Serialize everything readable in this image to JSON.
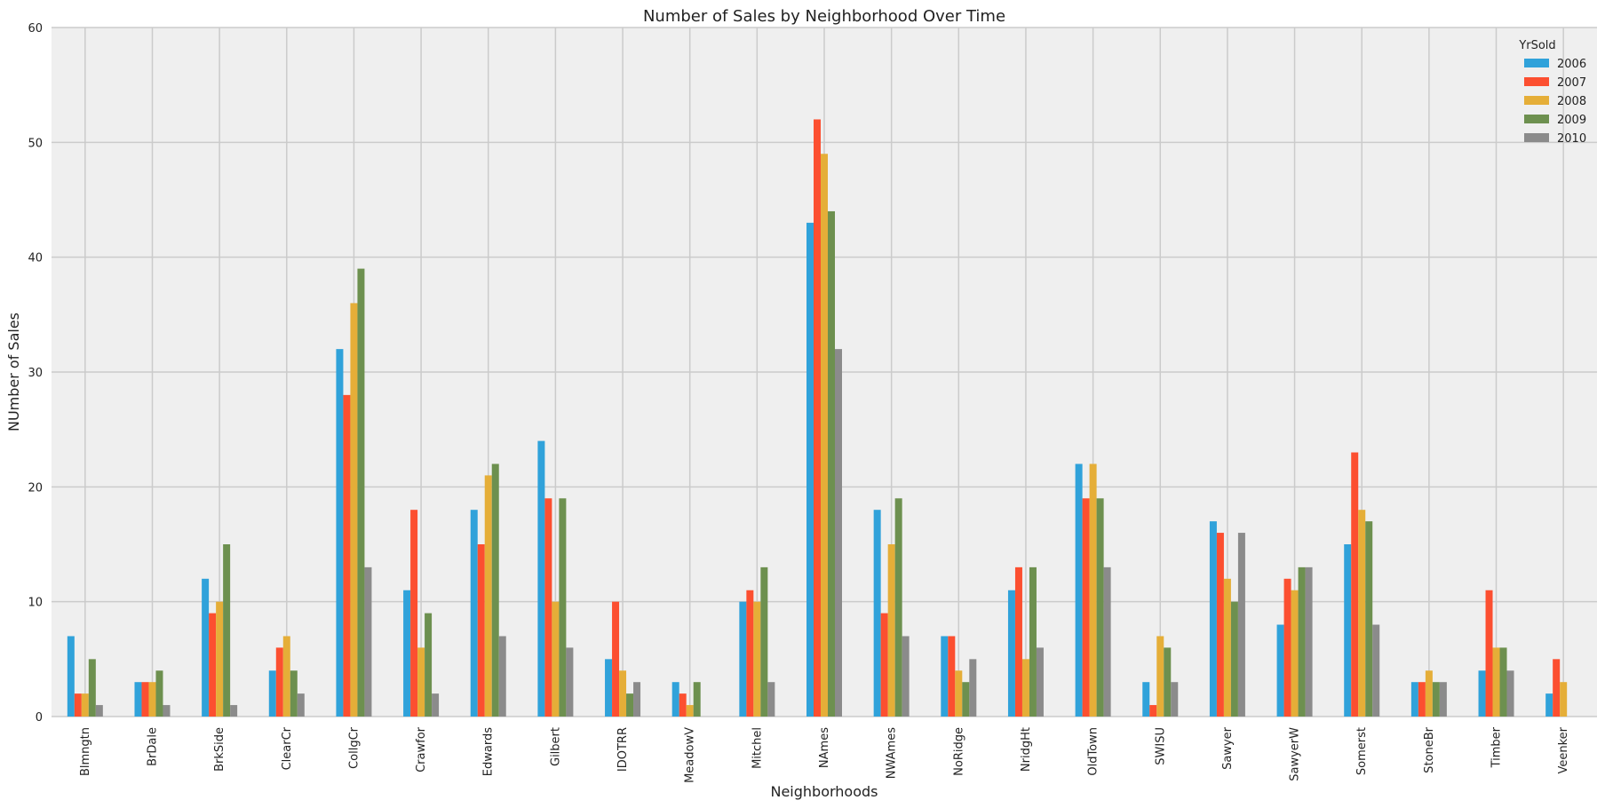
{
  "chart_data": {
    "type": "bar",
    "title": "Number of Sales by Neighborhood Over Time",
    "xlabel": "Neighborhoods",
    "ylabel": "NUmber of Sales",
    "ylim": [
      0,
      60
    ],
    "yticks": [
      0,
      10,
      20,
      30,
      40,
      50,
      60
    ],
    "grid": true,
    "legend_title": "YrSold",
    "legend_position": "top-right",
    "categories": [
      "Blmngtn",
      "BrDale",
      "BrkSide",
      "ClearCr",
      "CollgCr",
      "Crawfor",
      "Edwards",
      "Gilbert",
      "IDOTRR",
      "MeadowV",
      "Mitchel",
      "NAmes",
      "NWAmes",
      "NoRidge",
      "NridgHt",
      "OldTown",
      "SWISU",
      "Sawyer",
      "SawyerW",
      "Somerst",
      "StoneBr",
      "Timber",
      "Veenker"
    ],
    "series": [
      {
        "name": "2006",
        "color": "#30a2da",
        "values": [
          7,
          3,
          12,
          4,
          32,
          11,
          18,
          24,
          5,
          3,
          10,
          43,
          18,
          7,
          11,
          22,
          3,
          17,
          8,
          15,
          3,
          4,
          2
        ]
      },
      {
        "name": "2007",
        "color": "#fc4f30",
        "values": [
          2,
          3,
          9,
          6,
          28,
          18,
          15,
          19,
          10,
          2,
          11,
          52,
          9,
          7,
          13,
          19,
          1,
          16,
          12,
          23,
          3,
          11,
          5
        ]
      },
      {
        "name": "2008",
        "color": "#e5ae38",
        "values": [
          2,
          3,
          10,
          7,
          36,
          6,
          21,
          10,
          4,
          1,
          10,
          49,
          15,
          4,
          5,
          22,
          7,
          12,
          11,
          18,
          4,
          6,
          3
        ]
      },
      {
        "name": "2009",
        "color": "#6d904f",
        "values": [
          5,
          4,
          15,
          4,
          39,
          9,
          22,
          19,
          2,
          3,
          13,
          44,
          19,
          3,
          13,
          19,
          6,
          10,
          13,
          17,
          3,
          6,
          0
        ]
      },
      {
        "name": "2010",
        "color": "#8b8b8b",
        "values": [
          1,
          1,
          1,
          2,
          13,
          2,
          7,
          6,
          3,
          0,
          3,
          32,
          7,
          5,
          6,
          13,
          3,
          16,
          13,
          8,
          3,
          4,
          0
        ]
      }
    ]
  }
}
